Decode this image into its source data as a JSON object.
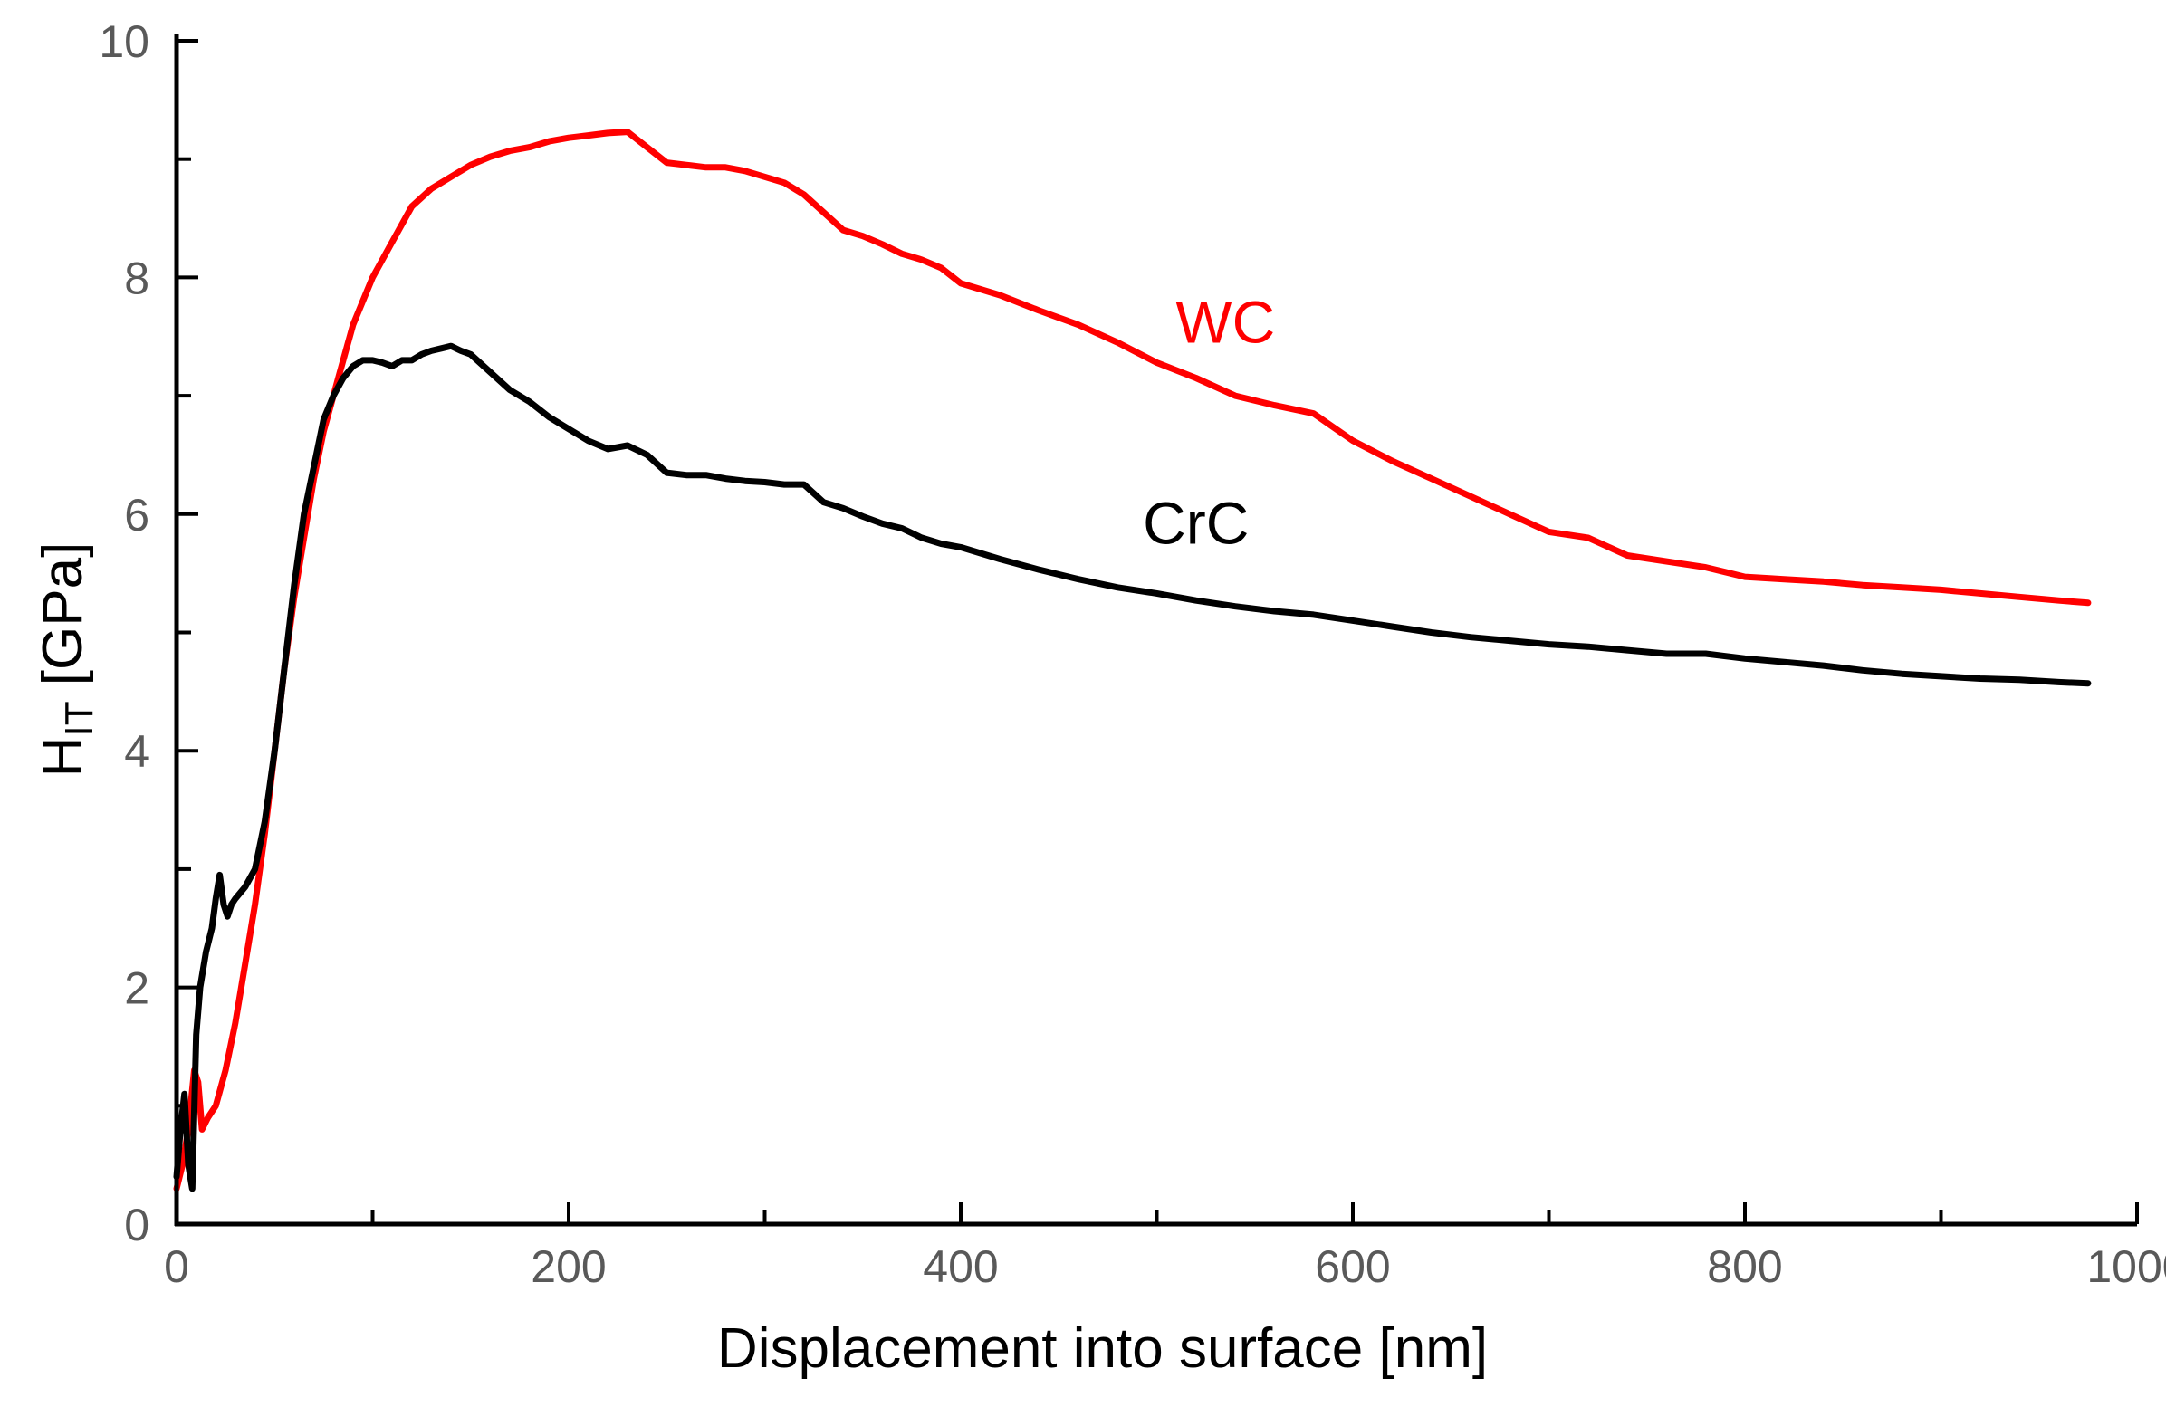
{
  "chart_data": {
    "type": "line",
    "title": "",
    "xlabel": "Displacement into surface [nm]",
    "ylabel_main": "H",
    "ylabel_sub": "IT",
    "ylabel_unit": " [GPa]",
    "xlim": [
      0,
      1000
    ],
    "ylim": [
      0,
      10
    ],
    "x_ticks": [
      0,
      200,
      400,
      600,
      800,
      1000
    ],
    "x_tick_labels": [
      "0",
      "200",
      "400",
      "600",
      "800",
      "1000"
    ],
    "y_ticks": [
      0,
      2,
      4,
      6,
      8,
      10
    ],
    "y_tick_labels": [
      "0",
      "2",
      "4",
      "6",
      "8",
      "10"
    ],
    "x_minor_step": 100,
    "y_minor_step": 1,
    "grid": false,
    "series": [
      {
        "name": "WC",
        "color": "#ff0000",
        "label_at": [
          535,
          7.45
        ],
        "points": [
          [
            0,
            0.3
          ],
          [
            3,
            0.5
          ],
          [
            6,
            0.8
          ],
          [
            9,
            1.3
          ],
          [
            11,
            1.2
          ],
          [
            13,
            0.8
          ],
          [
            16,
            0.9
          ],
          [
            20,
            1.0
          ],
          [
            25,
            1.3
          ],
          [
            30,
            1.7
          ],
          [
            35,
            2.2
          ],
          [
            40,
            2.7
          ],
          [
            45,
            3.3
          ],
          [
            50,
            4.0
          ],
          [
            55,
            4.7
          ],
          [
            60,
            5.3
          ],
          [
            65,
            5.8
          ],
          [
            70,
            6.3
          ],
          [
            75,
            6.7
          ],
          [
            80,
            7.0
          ],
          [
            85,
            7.3
          ],
          [
            90,
            7.6
          ],
          [
            95,
            7.8
          ],
          [
            100,
            8.0
          ],
          [
            110,
            8.3
          ],
          [
            120,
            8.6
          ],
          [
            130,
            8.75
          ],
          [
            140,
            8.85
          ],
          [
            150,
            8.95
          ],
          [
            160,
            9.02
          ],
          [
            170,
            9.07
          ],
          [
            180,
            9.1
          ],
          [
            190,
            9.15
          ],
          [
            200,
            9.18
          ],
          [
            210,
            9.2
          ],
          [
            220,
            9.22
          ],
          [
            230,
            9.23
          ],
          [
            240,
            9.1
          ],
          [
            250,
            8.97
          ],
          [
            260,
            8.95
          ],
          [
            270,
            8.93
          ],
          [
            280,
            8.93
          ],
          [
            290,
            8.9
          ],
          [
            300,
            8.85
          ],
          [
            310,
            8.8
          ],
          [
            320,
            8.7
          ],
          [
            330,
            8.55
          ],
          [
            340,
            8.4
          ],
          [
            350,
            8.35
          ],
          [
            360,
            8.28
          ],
          [
            370,
            8.2
          ],
          [
            380,
            8.15
          ],
          [
            390,
            8.08
          ],
          [
            400,
            7.95
          ],
          [
            420,
            7.85
          ],
          [
            440,
            7.72
          ],
          [
            460,
            7.6
          ],
          [
            480,
            7.45
          ],
          [
            500,
            7.28
          ],
          [
            520,
            7.15
          ],
          [
            540,
            7.0
          ],
          [
            560,
            6.92
          ],
          [
            580,
            6.85
          ],
          [
            600,
            6.62
          ],
          [
            620,
            6.45
          ],
          [
            640,
            6.3
          ],
          [
            660,
            6.15
          ],
          [
            680,
            6.0
          ],
          [
            700,
            5.85
          ],
          [
            720,
            5.8
          ],
          [
            740,
            5.65
          ],
          [
            760,
            5.6
          ],
          [
            780,
            5.55
          ],
          [
            800,
            5.47
          ],
          [
            820,
            5.45
          ],
          [
            840,
            5.43
          ],
          [
            860,
            5.4
          ],
          [
            880,
            5.38
          ],
          [
            900,
            5.36
          ],
          [
            920,
            5.33
          ],
          [
            940,
            5.3
          ],
          [
            960,
            5.27
          ],
          [
            975,
            5.25
          ]
        ]
      },
      {
        "name": "CrC",
        "color": "#000000",
        "label_at": [
          520,
          5.75
        ],
        "points": [
          [
            0,
            0.4
          ],
          [
            2,
            0.8
          ],
          [
            4,
            1.1
          ],
          [
            6,
            0.5
          ],
          [
            8,
            0.3
          ],
          [
            10,
            1.6
          ],
          [
            12,
            2.0
          ],
          [
            15,
            2.3
          ],
          [
            18,
            2.5
          ],
          [
            20,
            2.75
          ],
          [
            22,
            2.95
          ],
          [
            24,
            2.7
          ],
          [
            26,
            2.6
          ],
          [
            28,
            2.7
          ],
          [
            30,
            2.75
          ],
          [
            35,
            2.85
          ],
          [
            40,
            3.0
          ],
          [
            45,
            3.4
          ],
          [
            50,
            4.0
          ],
          [
            55,
            4.7
          ],
          [
            60,
            5.4
          ],
          [
            65,
            6.0
          ],
          [
            70,
            6.4
          ],
          [
            75,
            6.8
          ],
          [
            80,
            7.0
          ],
          [
            85,
            7.15
          ],
          [
            90,
            7.25
          ],
          [
            95,
            7.3
          ],
          [
            100,
            7.3
          ],
          [
            105,
            7.28
          ],
          [
            110,
            7.25
          ],
          [
            115,
            7.3
          ],
          [
            120,
            7.3
          ],
          [
            125,
            7.35
          ],
          [
            130,
            7.38
          ],
          [
            135,
            7.4
          ],
          [
            140,
            7.42
          ],
          [
            145,
            7.38
          ],
          [
            150,
            7.35
          ],
          [
            160,
            7.2
          ],
          [
            170,
            7.05
          ],
          [
            180,
            6.95
          ],
          [
            190,
            6.82
          ],
          [
            200,
            6.72
          ],
          [
            210,
            6.62
          ],
          [
            220,
            6.55
          ],
          [
            230,
            6.58
          ],
          [
            240,
            6.5
          ],
          [
            250,
            6.35
          ],
          [
            260,
            6.33
          ],
          [
            270,
            6.33
          ],
          [
            280,
            6.3
          ],
          [
            290,
            6.28
          ],
          [
            300,
            6.27
          ],
          [
            310,
            6.25
          ],
          [
            320,
            6.25
          ],
          [
            330,
            6.1
          ],
          [
            340,
            6.05
          ],
          [
            350,
            5.98
          ],
          [
            360,
            5.92
          ],
          [
            370,
            5.88
          ],
          [
            380,
            5.8
          ],
          [
            390,
            5.75
          ],
          [
            400,
            5.72
          ],
          [
            420,
            5.62
          ],
          [
            440,
            5.53
          ],
          [
            460,
            5.45
          ],
          [
            480,
            5.38
          ],
          [
            500,
            5.33
          ],
          [
            520,
            5.27
          ],
          [
            540,
            5.22
          ],
          [
            560,
            5.18
          ],
          [
            580,
            5.15
          ],
          [
            600,
            5.1
          ],
          [
            620,
            5.05
          ],
          [
            640,
            5.0
          ],
          [
            660,
            4.96
          ],
          [
            680,
            4.93
          ],
          [
            700,
            4.9
          ],
          [
            720,
            4.88
          ],
          [
            740,
            4.85
          ],
          [
            760,
            4.82
          ],
          [
            780,
            4.82
          ],
          [
            800,
            4.78
          ],
          [
            820,
            4.75
          ],
          [
            840,
            4.72
          ],
          [
            860,
            4.68
          ],
          [
            880,
            4.65
          ],
          [
            900,
            4.63
          ],
          [
            920,
            4.61
          ],
          [
            940,
            4.6
          ],
          [
            960,
            4.58
          ],
          [
            975,
            4.57
          ]
        ]
      }
    ]
  }
}
